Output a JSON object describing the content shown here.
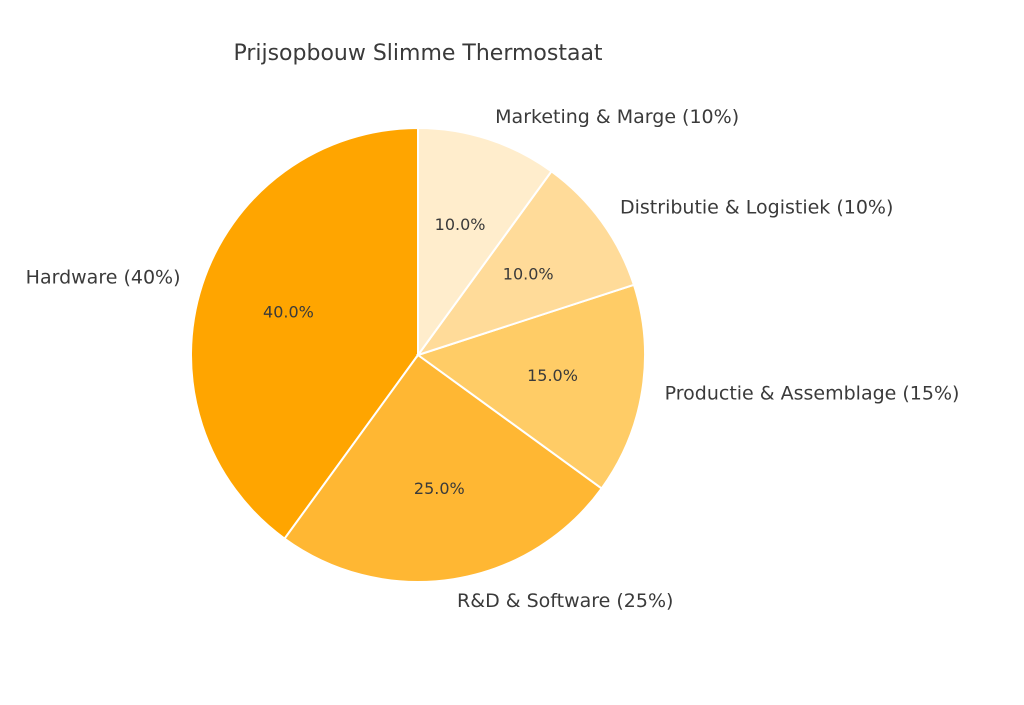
{
  "chart_data": {
    "type": "pie",
    "title": "Prijsopbouw Slimme Thermostaat",
    "start_angle_deg": 90,
    "direction": "counterclockwise",
    "slices": [
      {
        "label": "Hardware (40%)",
        "value": 40,
        "pct_label": "40.0%",
        "color": "#FFA500"
      },
      {
        "label": "R&D & Software (25%)",
        "value": 25,
        "pct_label": "25.0%",
        "color": "#FFB733"
      },
      {
        "label": "Productie & Assemblage (15%)",
        "value": 15,
        "pct_label": "15.0%",
        "color": "#FFCC66"
      },
      {
        "label": "Distributie & Logistiek (10%)",
        "value": 10,
        "pct_label": "10.0%",
        "color": "#FFDB99"
      },
      {
        "label": "Marketing & Marge (10%)",
        "value": 10,
        "pct_label": "10.0%",
        "color": "#FFEDCC"
      }
    ]
  }
}
